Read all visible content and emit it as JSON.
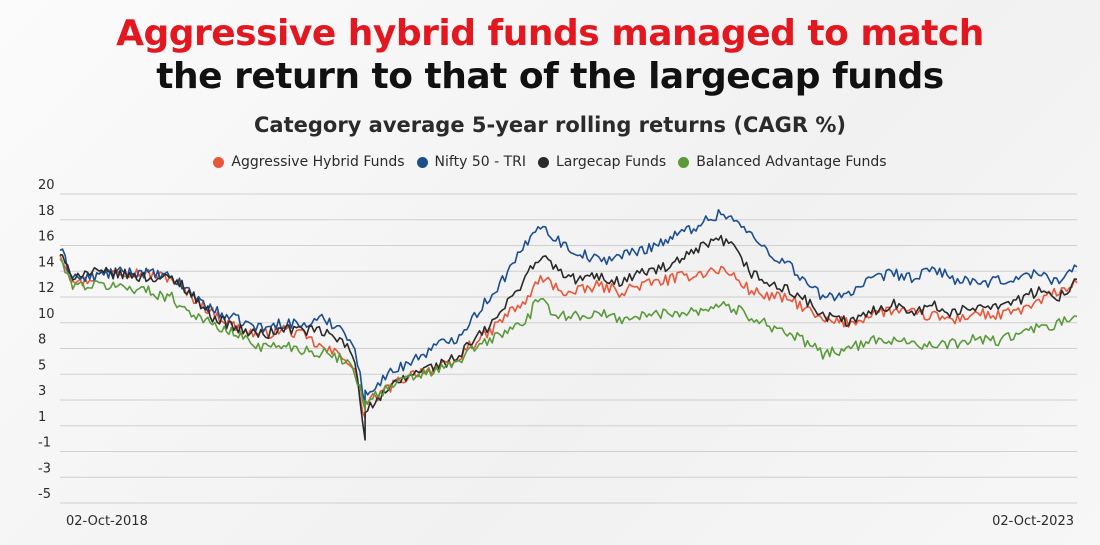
{
  "headline": {
    "line1": "Aggressive hybrid funds managed to match",
    "line2": "the return to that of the largecap funds"
  },
  "chart_data": {
    "type": "line",
    "title": "Category average 5-year rolling returns (CAGR %)",
    "xlabel": "",
    "ylabel": "",
    "x_start": "02-Oct-2018",
    "x_end": "02-Oct-2023",
    "y_ticks": [
      "20",
      "18",
      "16",
      "14",
      "12",
      "10",
      "8",
      "5",
      "3",
      "1",
      "-1",
      "-3",
      "-5"
    ],
    "ylim": [
      -5,
      20
    ],
    "grid": true,
    "legend_position": "top",
    "x_fraction": [
      0,
      0.01,
      0.02,
      0.05,
      0.08,
      0.11,
      0.12,
      0.15,
      0.18,
      0.2,
      0.22,
      0.24,
      0.26,
      0.28,
      0.29,
      0.3,
      0.3,
      0.31,
      0.33,
      0.35,
      0.37,
      0.39,
      0.4,
      0.42,
      0.44,
      0.46,
      0.47,
      0.48,
      0.5,
      0.53,
      0.55,
      0.57,
      0.6,
      0.63,
      0.65,
      0.66,
      0.68,
      0.7,
      0.72,
      0.73,
      0.75,
      0.78,
      0.8,
      0.82,
      0.84,
      0.86,
      0.88,
      0.9,
      0.92,
      0.94,
      0.96,
      0.98,
      1
    ],
    "series": [
      {
        "name": "Aggressive Hybrid Funds",
        "color": "#e8573a",
        "values": [
          15.3,
          13.4,
          12.8,
          13.9,
          13.6,
          13.2,
          12.3,
          10.4,
          8.9,
          8.6,
          9.1,
          8.5,
          7.4,
          6.9,
          5.6,
          1.8,
          3.1,
          3.5,
          4.7,
          5.6,
          5.9,
          6.3,
          7.6,
          8.6,
          10.3,
          11.4,
          13.1,
          12.9,
          11.9,
          12.6,
          12.1,
          12.6,
          13.1,
          13.6,
          13.9,
          13.5,
          12.1,
          11.7,
          11.4,
          10.9,
          9.7,
          9.6,
          10.4,
          10.6,
          10.3,
          10.1,
          9.8,
          10.4,
          10.1,
          10.5,
          11.1,
          12.1,
          12.8
        ]
      },
      {
        "name": "Nifty 50 - TRI",
        "color": "#1d4f8f",
        "values": [
          15.6,
          13.7,
          13.1,
          13.6,
          13.7,
          13.2,
          12.6,
          10.6,
          9.6,
          9.1,
          9.6,
          9.4,
          9.9,
          9.0,
          7.4,
          3.1,
          3.8,
          4.6,
          5.8,
          6.7,
          7.7,
          8.4,
          9.4,
          11.4,
          13.6,
          16.1,
          17.7,
          16.9,
          15.6,
          14.6,
          15.0,
          15.4,
          16.4,
          17.6,
          18.5,
          18.1,
          16.6,
          15.1,
          14.1,
          13.1,
          11.6,
          12.1,
          13.1,
          13.6,
          13.1,
          14.0,
          13.1,
          12.7,
          12.9,
          13.2,
          13.6,
          13.0,
          14.1
        ]
      },
      {
        "name": "Largecap Funds",
        "color": "#2a2a2a",
        "values": [
          15.2,
          13.4,
          13.6,
          13.6,
          13.3,
          13.1,
          12.7,
          10.1,
          8.9,
          8.6,
          9.1,
          9.0,
          8.8,
          7.9,
          6.5,
          0.2,
          2.6,
          3.1,
          4.6,
          5.6,
          6.1,
          6.7,
          7.6,
          9.1,
          11.1,
          13.6,
          14.8,
          14.6,
          13.1,
          13.3,
          12.9,
          13.6,
          14.1,
          15.6,
          16.3,
          15.8,
          13.6,
          12.6,
          12.1,
          11.6,
          10.1,
          9.6,
          10.6,
          11.1,
          10.6,
          10.9,
          10.3,
          10.9,
          11.1,
          11.3,
          12.1,
          11.6,
          13.1
        ]
      },
      {
        "name": "Balanced Advantage Funds",
        "color": "#5a9a3a",
        "values": [
          14.8,
          12.8,
          12.6,
          12.6,
          12.3,
          11.6,
          10.9,
          9.4,
          8.4,
          7.6,
          7.8,
          7.4,
          7.1,
          6.6,
          5.7,
          2.7,
          3.3,
          3.7,
          4.6,
          5.3,
          5.7,
          6.3,
          7.1,
          8.1,
          8.9,
          9.9,
          11.6,
          10.6,
          10.1,
          10.3,
          9.9,
          10.1,
          10.4,
          10.6,
          11.1,
          10.8,
          10.1,
          9.3,
          8.6,
          8.1,
          7.1,
          7.6,
          8.1,
          8.3,
          8.0,
          7.6,
          7.9,
          8.3,
          8.1,
          8.6,
          9.1,
          9.4,
          10.1
        ]
      }
    ]
  }
}
